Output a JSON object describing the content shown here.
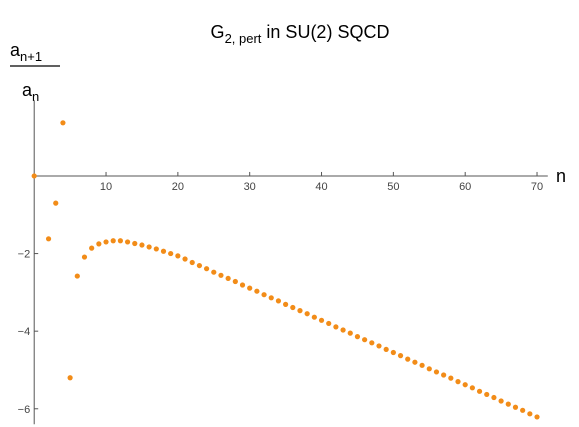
{
  "chart_data": {
    "type": "scatter",
    "title": {
      "main": "G",
      "sub": "2, pert",
      "rest": " in SU(2) SQCD"
    },
    "ylabel": {
      "numerator": {
        "base": "a",
        "sub": "n+1"
      },
      "denominator": {
        "base": "a",
        "sub": "n"
      }
    },
    "xlabel": "n",
    "color": "#f28c18",
    "x": [
      0,
      2,
      3,
      4,
      5,
      6,
      7,
      8,
      9,
      10,
      11,
      12,
      13,
      14,
      15,
      16,
      17,
      18,
      19,
      20,
      21,
      22,
      23,
      24,
      25,
      26,
      27,
      28,
      29,
      30,
      31,
      32,
      33,
      34,
      35,
      36,
      37,
      38,
      39,
      40,
      41,
      42,
      43,
      44,
      45,
      46,
      47,
      48,
      49,
      50,
      51,
      52,
      53,
      54,
      55,
      56,
      57,
      58,
      59,
      60,
      61,
      62,
      63,
      64,
      65,
      66,
      67,
      68,
      69,
      70
    ],
    "values": [
      0,
      -1.62,
      -0.7,
      1.37,
      -5.2,
      -2.58,
      -2.09,
      -1.86,
      -1.75,
      -1.7,
      -1.67,
      -1.67,
      -1.7,
      -1.74,
      -1.78,
      -1.83,
      -1.88,
      -1.94,
      -2.0,
      -2.06,
      -2.14,
      -2.23,
      -2.31,
      -2.39,
      -2.48,
      -2.56,
      -2.64,
      -2.72,
      -2.81,
      -2.89,
      -2.97,
      -3.06,
      -3.14,
      -3.22,
      -3.31,
      -3.39,
      -3.47,
      -3.55,
      -3.64,
      -3.72,
      -3.8,
      -3.89,
      -3.97,
      -4.05,
      -4.14,
      -4.22,
      -4.3,
      -4.38,
      -4.47,
      -4.55,
      -4.63,
      -4.72,
      -4.8,
      -4.88,
      -4.97,
      -5.05,
      -5.13,
      -5.21,
      -5.3,
      -5.38,
      -5.46,
      -5.55,
      -5.63,
      -5.71,
      -5.8,
      -5.88,
      -5.96,
      -6.04,
      -6.13,
      -6.21
    ],
    "xlim": [
      0,
      71.5
    ],
    "ylim": [
      -6.4,
      1.95
    ],
    "xticks": [
      10,
      20,
      30,
      40,
      50,
      60,
      70
    ],
    "yticks": [
      {
        "value": -6,
        "label": "−6"
      },
      {
        "value": -4,
        "label": "−4"
      },
      {
        "value": -2,
        "label": "−2"
      }
    ]
  }
}
